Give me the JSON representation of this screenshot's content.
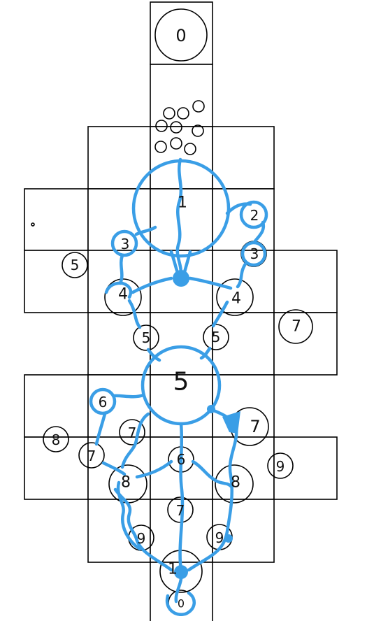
{
  "board": {
    "labels": {
      "top": "0",
      "center_upper": "1",
      "right_2": "2",
      "left_3": "3",
      "right_3": "3",
      "left_5_outer": "5",
      "left_4": "4",
      "right_4": "4",
      "right_7_outer": "7",
      "left_5": "5",
      "right_5": "5",
      "center_5": "5",
      "left_6": "6",
      "right_7": "7",
      "left_8_outer": "8",
      "mid_7_left": "7",
      "left_7": "7",
      "center_6": "6",
      "right_9_outer": "9",
      "left_8": "8",
      "right_8": "8",
      "center_7": "7",
      "left_9": "9",
      "right_9": "9",
      "bottom_1": "1",
      "bottom_0": "0"
    },
    "path_color": "#3a9ee6",
    "ink_color": "#000000"
  }
}
